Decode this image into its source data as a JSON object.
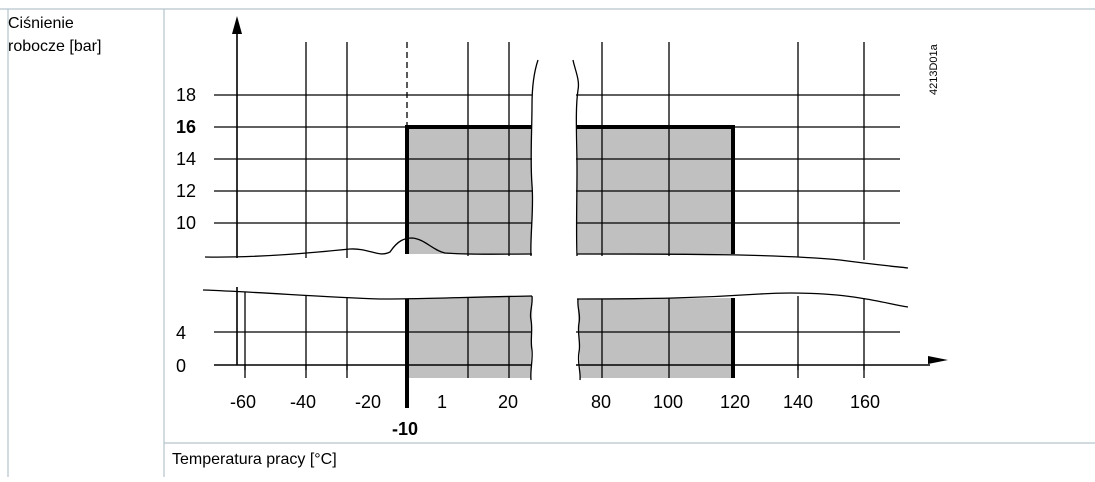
{
  "y_axis_label": {
    "line1": "Ciśnienie",
    "line2": "robocze [bar]"
  },
  "x_axis_label": "Temperatura pracy [°C]",
  "figure_code": "4213D01a",
  "y_ticks": [
    {
      "label": "18",
      "bold": false
    },
    {
      "label": "16",
      "bold": true
    },
    {
      "label": "14",
      "bold": false
    },
    {
      "label": "12",
      "bold": false
    },
    {
      "label": "10",
      "bold": false
    },
    {
      "label": "4",
      "bold": false
    },
    {
      "label": "0",
      "bold": false
    }
  ],
  "x_ticks": [
    {
      "label": "-60",
      "bold": false
    },
    {
      "label": "-40",
      "bold": false
    },
    {
      "label": "-20",
      "bold": false
    },
    {
      "label": "1",
      "bold": false
    },
    {
      "label": "20",
      "bold": false
    },
    {
      "label": "80",
      "bold": false
    },
    {
      "label": "100",
      "bold": false
    },
    {
      "label": "120",
      "bold": false
    },
    {
      "label": "140",
      "bold": false
    },
    {
      "label": "160",
      "bold": false
    }
  ],
  "limit_marker_x": "-10",
  "colors": {
    "grid": "#000000",
    "region_fill": "#c0c0c0",
    "table_border": "#b4c3cc"
  }
}
